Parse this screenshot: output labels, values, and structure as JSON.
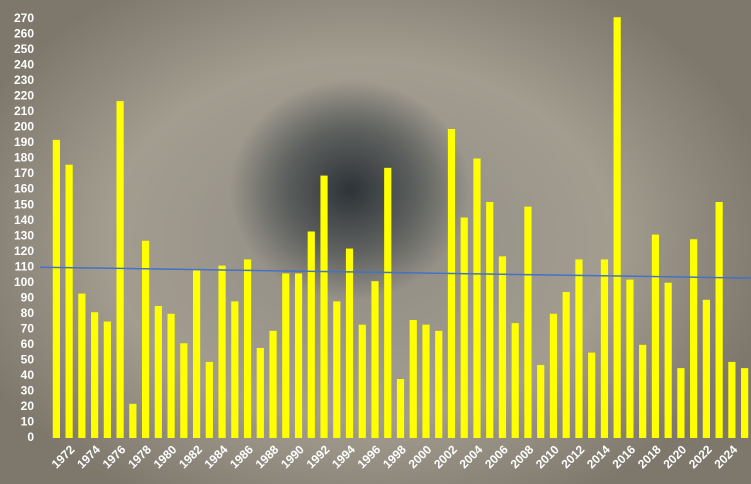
{
  "chart_data": {
    "type": "bar",
    "categories": [
      null,
      "1972",
      null,
      "1974",
      null,
      "1976",
      null,
      "1978",
      null,
      "1980",
      null,
      "1982",
      null,
      "1984",
      null,
      "1986",
      null,
      "1988",
      null,
      "1990",
      null,
      "1992",
      null,
      "1994",
      null,
      "1996",
      null,
      "1998",
      null,
      "2000",
      null,
      "2002",
      null,
      "2004",
      null,
      "2006",
      null,
      "2008",
      null,
      "2010",
      null,
      "2012",
      null,
      "2014",
      null,
      "2016",
      null,
      "2018",
      null,
      "2020",
      null,
      "2022",
      null,
      "2024",
      null
    ],
    "values": [
      192,
      176,
      93,
      81,
      75,
      217,
      22,
      127,
      85,
      80,
      61,
      108,
      49,
      111,
      88,
      115,
      58,
      69,
      106,
      106,
      133,
      169,
      88,
      122,
      73,
      101,
      174,
      38,
      76,
      73,
      69,
      199,
      142,
      180,
      152,
      117,
      74,
      149,
      47,
      80,
      94,
      115,
      55,
      115,
      271,
      102,
      60,
      131,
      100,
      45,
      128,
      89,
      152,
      49,
      45
    ],
    "color": "#ffff00",
    "trendline": {
      "values": [
        110,
        103
      ],
      "color": "#4472c4"
    },
    "ylim": [
      0,
      275
    ],
    "yticks": [
      0,
      10,
      20,
      30,
      40,
      50,
      60,
      70,
      80,
      90,
      100,
      110,
      120,
      130,
      140,
      150,
      160,
      170,
      180,
      190,
      200,
      210,
      220,
      230,
      240,
      250,
      260,
      270
    ]
  }
}
